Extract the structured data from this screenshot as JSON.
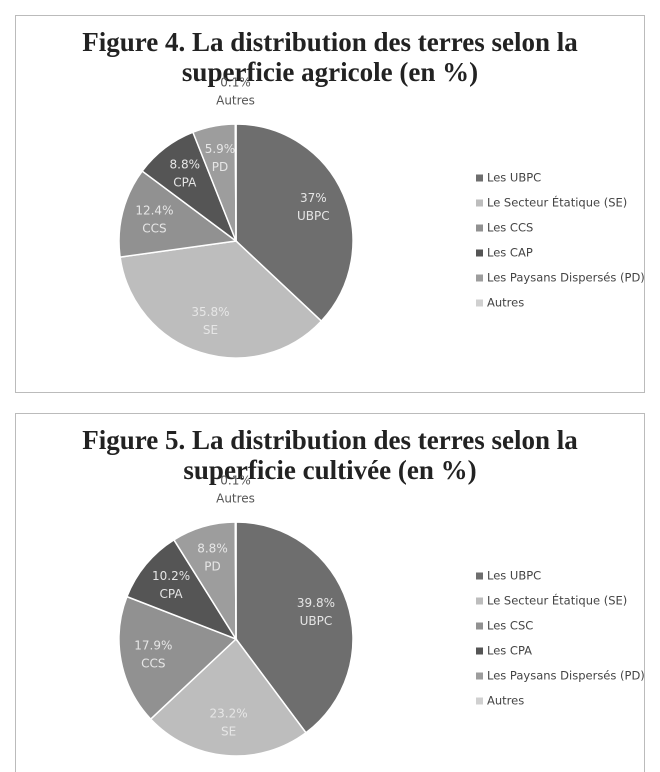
{
  "chart_data": [
    {
      "type": "pie",
      "title": "Figure 4. La distribution des terres selon la superficie agricole (en %)",
      "title_lines": [
        "Figure 4. La distribution des terres selon la",
        "superficie agricole (en %)"
      ],
      "categories": [
        "Les UBPC",
        "Le Secteur Étatique (SE)",
        "Les CCS",
        "Les CAP",
        "Les Paysans Dispersés (PD)",
        "Autres"
      ],
      "labels": [
        "UBPC",
        "SE",
        "CCS",
        "CPA",
        "PD",
        "Autres"
      ],
      "values": [
        37,
        35.8,
        12.4,
        8.8,
        5.9,
        0.1
      ],
      "value_labels": [
        "37%",
        "35.8%",
        "12.4%",
        "8.8%",
        "5.9%",
        "0.1%"
      ],
      "colors": [
        "#6e6e6e",
        "#bdbdbd",
        "#919191",
        "#555555",
        "#9d9d9d",
        "#d0d0d0"
      ]
    },
    {
      "type": "pie",
      "title": "Figure 5. La distribution des terres selon la superficie cultivée (en %)",
      "title_lines": [
        "Figure 5. La distribution des terres selon la",
        "superficie cultivée (en %)"
      ],
      "categories": [
        "Les UBPC",
        "Le Secteur Étatique (SE)",
        "Les CSC",
        "Les CPA",
        "Les Paysans Dispersés (PD)",
        "Autres"
      ],
      "labels": [
        "UBPC",
        "SE",
        "CCS",
        "CPA",
        "PD",
        "Autres"
      ],
      "values": [
        39.8,
        23.2,
        17.9,
        10.2,
        8.8,
        0.1
      ],
      "value_labels": [
        "39.8%",
        "23.2%",
        "17.9%",
        "10.2%",
        "8.8%",
        "0.1%"
      ],
      "colors": [
        "#6e6e6e",
        "#bdbdbd",
        "#919191",
        "#555555",
        "#9d9d9d",
        "#d0d0d0"
      ]
    }
  ]
}
